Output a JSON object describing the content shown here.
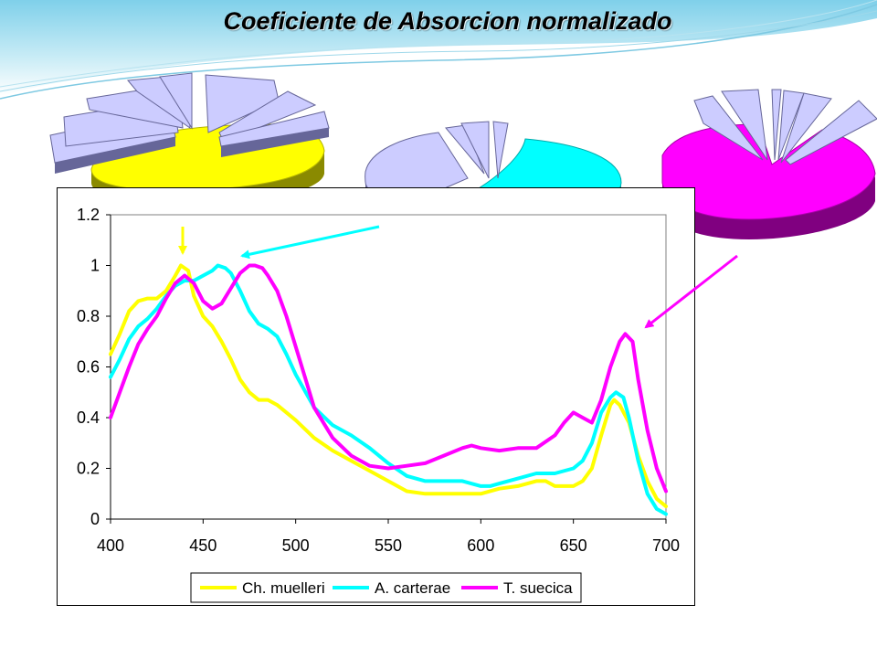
{
  "slide": {
    "title": "Coeficiente de Absorcion normalizado"
  },
  "pies": [
    {
      "name": "pie-ch-muelleri",
      "highlight_color": "#ffff00",
      "rest_color": "#ccccff"
    },
    {
      "name": "pie-a-carterae",
      "highlight_color": "#00ffff",
      "rest_color": "#ccccff"
    },
    {
      "name": "pie-t-suecica",
      "highlight_color": "#ff00ff",
      "rest_color": "#ccccff"
    }
  ],
  "chart_data": {
    "type": "line",
    "title": "",
    "xlabel": "",
    "ylabel": "",
    "xlim": [
      400,
      700
    ],
    "ylim": [
      0,
      1.2
    ],
    "xticks": [
      "400",
      "450",
      "500",
      "550",
      "600",
      "650",
      "700"
    ],
    "yticks": [
      "0",
      "0.2",
      "0.4",
      "0.6",
      "0.8",
      "1",
      "1.2"
    ],
    "grid": false,
    "legend_position": "bottom",
    "series": [
      {
        "name": "Ch. muelleri",
        "color": "#ffff00",
        "x": [
          400,
          405,
          410,
          415,
          420,
          425,
          430,
          435,
          438,
          442,
          445,
          450,
          455,
          460,
          465,
          470,
          475,
          480,
          485,
          490,
          500,
          510,
          520,
          530,
          540,
          550,
          560,
          570,
          580,
          590,
          600,
          610,
          620,
          630,
          635,
          640,
          645,
          650,
          655,
          660,
          665,
          670,
          672,
          675,
          680,
          685,
          690,
          695,
          700
        ],
        "y": [
          0.65,
          0.73,
          0.82,
          0.86,
          0.87,
          0.87,
          0.9,
          0.96,
          1.0,
          0.98,
          0.88,
          0.8,
          0.76,
          0.7,
          0.63,
          0.55,
          0.5,
          0.47,
          0.47,
          0.45,
          0.39,
          0.32,
          0.27,
          0.23,
          0.19,
          0.15,
          0.11,
          0.1,
          0.1,
          0.1,
          0.1,
          0.12,
          0.13,
          0.15,
          0.15,
          0.13,
          0.13,
          0.13,
          0.15,
          0.2,
          0.33,
          0.45,
          0.47,
          0.45,
          0.38,
          0.25,
          0.15,
          0.08,
          0.05
        ]
      },
      {
        "name": "A. carterae",
        "color": "#00ffff",
        "x": [
          400,
          405,
          410,
          415,
          420,
          425,
          430,
          435,
          440,
          445,
          450,
          455,
          458,
          462,
          465,
          470,
          475,
          480,
          485,
          490,
          495,
          500,
          510,
          520,
          530,
          540,
          550,
          560,
          570,
          580,
          590,
          600,
          605,
          610,
          620,
          630,
          640,
          650,
          655,
          660,
          665,
          670,
          673,
          677,
          680,
          685,
          690,
          695,
          700
        ],
        "y": [
          0.56,
          0.63,
          0.71,
          0.76,
          0.79,
          0.83,
          0.88,
          0.92,
          0.94,
          0.94,
          0.96,
          0.98,
          1.0,
          0.99,
          0.97,
          0.9,
          0.82,
          0.77,
          0.75,
          0.72,
          0.65,
          0.57,
          0.44,
          0.37,
          0.33,
          0.28,
          0.22,
          0.17,
          0.15,
          0.15,
          0.15,
          0.13,
          0.13,
          0.14,
          0.16,
          0.18,
          0.18,
          0.2,
          0.23,
          0.3,
          0.42,
          0.48,
          0.5,
          0.48,
          0.4,
          0.23,
          0.1,
          0.04,
          0.02
        ]
      },
      {
        "name": "T. suecica",
        "color": "#ff00ff",
        "x": [
          400,
          405,
          410,
          415,
          420,
          425,
          430,
          435,
          440,
          445,
          450,
          455,
          460,
          465,
          470,
          475,
          478,
          482,
          485,
          490,
          495,
          500,
          505,
          510,
          520,
          530,
          540,
          550,
          560,
          570,
          580,
          590,
          595,
          600,
          610,
          620,
          630,
          640,
          645,
          650,
          655,
          660,
          665,
          670,
          675,
          678,
          682,
          685,
          690,
          695,
          700
        ],
        "y": [
          0.4,
          0.5,
          0.6,
          0.69,
          0.75,
          0.8,
          0.87,
          0.93,
          0.96,
          0.93,
          0.86,
          0.83,
          0.85,
          0.91,
          0.97,
          1.0,
          1.0,
          0.99,
          0.96,
          0.9,
          0.8,
          0.68,
          0.56,
          0.44,
          0.32,
          0.25,
          0.21,
          0.2,
          0.21,
          0.22,
          0.25,
          0.28,
          0.29,
          0.28,
          0.27,
          0.28,
          0.28,
          0.33,
          0.38,
          0.42,
          0.4,
          0.38,
          0.47,
          0.6,
          0.7,
          0.73,
          0.7,
          0.55,
          0.35,
          0.2,
          0.11
        ]
      }
    ]
  }
}
